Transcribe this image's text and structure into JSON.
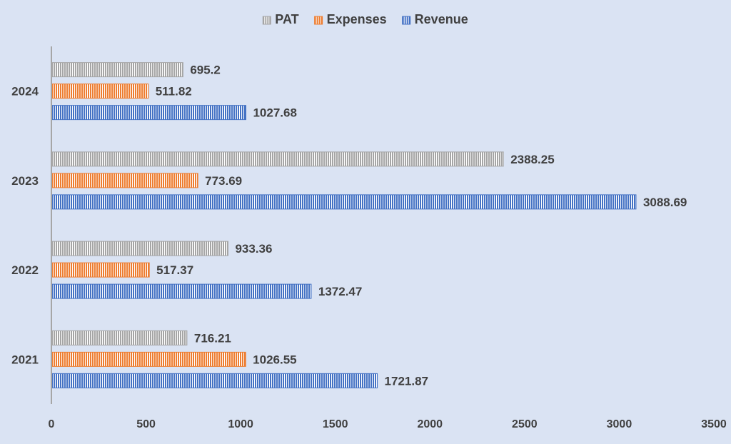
{
  "chart_data": {
    "type": "bar",
    "orientation": "horizontal",
    "categories": [
      "2021",
      "2022",
      "2023",
      "2024"
    ],
    "series": [
      {
        "name": "PAT",
        "values": [
          716.21,
          933.36,
          2388.25,
          695.2
        ],
        "labels": [
          "716.21",
          "933.36",
          "2388.25",
          "695.2"
        ],
        "color": "#a5a5a5"
      },
      {
        "name": "Expenses",
        "values": [
          1026.55,
          517.37,
          773.69,
          511.82
        ],
        "labels": [
          "1026.55",
          "517.37",
          "773.69",
          "511.82"
        ],
        "color": "#ed7d31"
      },
      {
        "name": "Revenue",
        "values": [
          1721.87,
          1372.47,
          3088.69,
          1027.68
        ],
        "labels": [
          "1721.87",
          "1372.47",
          "3088.69",
          "1027.68"
        ],
        "color": "#4472c4"
      }
    ],
    "xlim": [
      0,
      3500
    ],
    "xticks": [
      0,
      500,
      1000,
      1500,
      2000,
      2500,
      3000,
      3500
    ],
    "grid": false,
    "legend_position": "top",
    "bar_pattern": "vertical-stripes",
    "data_labels": true,
    "title": "",
    "xlabel": "",
    "ylabel": ""
  },
  "colors": {
    "background": "#dae3f3",
    "axis": "#a6a6a6",
    "text": "#404040"
  }
}
